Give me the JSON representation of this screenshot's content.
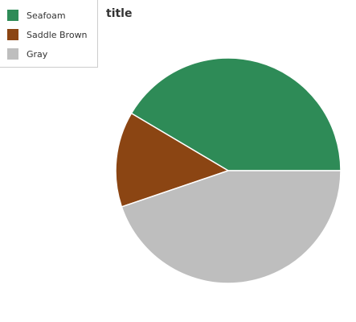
{
  "chart_data": {
    "type": "pie",
    "title": "title",
    "categories": [
      "Seafoam",
      "Saddle Brown",
      "Gray"
    ],
    "values": [
      41.5,
      13.7,
      44.8
    ],
    "colors": [
      "#2e8b57",
      "#8b4513",
      "#bebebe"
    ],
    "legend_position": "top-left"
  }
}
